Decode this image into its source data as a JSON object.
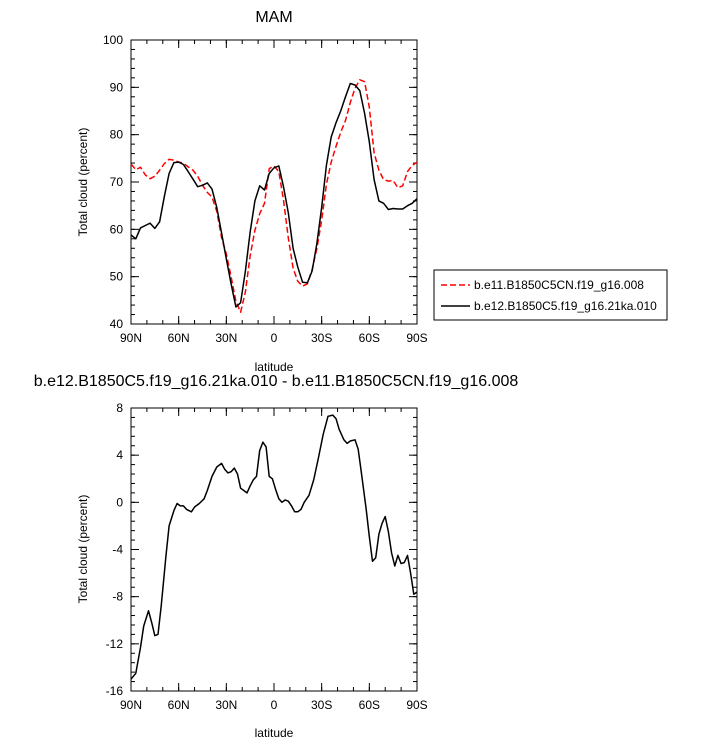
{
  "chart_data": [
    {
      "type": "line",
      "title": "MAM",
      "xlabel": "latitude",
      "ylabel": "Total cloud (percent)",
      "xlim": [
        90,
        -90
      ],
      "ylim": [
        40,
        100
      ],
      "xticks": [
        90,
        60,
        30,
        0,
        -30,
        -60,
        -90
      ],
      "xtick_labels": [
        "90N",
        "60N",
        "30N",
        "0",
        "30S",
        "60S",
        "90S"
      ],
      "yticks": [
        40,
        50,
        60,
        70,
        80,
        90,
        100
      ],
      "ytick_labels": [
        "40",
        "50",
        "60",
        "70",
        "80",
        "90",
        "100"
      ],
      "legend_position": "right",
      "series": [
        {
          "name": "b.e11.B1850C5CN.f19_g16.008",
          "color": "#ff0000",
          "dash": "dashed",
          "x": [
            90,
            87,
            84,
            81,
            78,
            75,
            72,
            69,
            66,
            63,
            60,
            57,
            54,
            51,
            48,
            45,
            42,
            39,
            36,
            33,
            30,
            27,
            24,
            21,
            18,
            15,
            12,
            9,
            6,
            3,
            0,
            -3,
            -6,
            -9,
            -12,
            -15,
            -18,
            -21,
            -24,
            -27,
            -30,
            -33,
            -36,
            -39,
            -42,
            -45,
            -48,
            -51,
            -54,
            -57,
            -60,
            -63,
            -66,
            -69,
            -72,
            -75,
            -78,
            -81,
            -84,
            -87,
            -90
          ],
          "y": [
            73.8,
            72.6,
            73.1,
            71.5,
            70.7,
            71.2,
            72.5,
            73.9,
            74.8,
            74.6,
            74.2,
            74.0,
            73.2,
            72.5,
            71.2,
            69.3,
            67.8,
            66.8,
            63.8,
            58.2,
            54.8,
            50.0,
            44.8,
            42.5,
            46.8,
            54.5,
            59.8,
            63.3,
            65.5,
            72.8,
            73.4,
            72.2,
            66.2,
            58.2,
            51.8,
            49.0,
            48.0,
            48.5,
            51.5,
            56.0,
            62.0,
            69.5,
            74.2,
            77.5,
            80.5,
            83.0,
            86.8,
            89.8,
            91.6,
            91.2,
            85.8,
            76.2,
            72.5,
            70.5,
            70.2,
            70.3,
            68.8,
            69.2,
            72.2,
            73.5,
            74.2
          ]
        },
        {
          "name": "b.e12.B1850C5.f19_g16.21ka.010",
          "color": "#000000",
          "dash": "solid",
          "x": [
            90,
            87,
            84,
            81,
            78,
            75,
            72,
            69,
            66,
            63,
            60,
            57,
            54,
            51,
            48,
            45,
            42,
            39,
            36,
            33,
            30,
            27,
            24,
            21,
            18,
            15,
            12,
            9,
            6,
            3,
            0,
            -3,
            -6,
            -9,
            -12,
            -15,
            -18,
            -21,
            -24,
            -27,
            -30,
            -33,
            -36,
            -39,
            -42,
            -45,
            -48,
            -51,
            -54,
            -57,
            -60,
            -63,
            -66,
            -69,
            -72,
            -75,
            -78,
            -81,
            -84,
            -87,
            -90
          ],
          "y": [
            58.8,
            58.0,
            60.3,
            60.8,
            61.3,
            60.2,
            61.6,
            67.0,
            71.8,
            74.1,
            74.2,
            73.7,
            72.2,
            70.6,
            69.0,
            69.3,
            69.8,
            68.5,
            64.6,
            59.2,
            53.8,
            48.5,
            43.6,
            44.5,
            51.2,
            59.5,
            66.0,
            69.2,
            68.3,
            71.8,
            73.0,
            73.4,
            69.0,
            63.5,
            56.0,
            52.0,
            48.8,
            48.7,
            51.2,
            57.0,
            64.7,
            73.5,
            79.5,
            82.5,
            85.0,
            88.0,
            90.8,
            90.5,
            89.3,
            84.5,
            78.5,
            70.5,
            66.0,
            65.5,
            64.2,
            64.4,
            64.3,
            64.3,
            65.0,
            65.5,
            66.5
          ]
        }
      ]
    },
    {
      "type": "line",
      "title": "b.e12.B1850C5.f19_g16.21ka.010 - b.e11.B1850C5CN.f19_g16.008",
      "xlabel": "latitude",
      "ylabel": "Total cloud (percent)",
      "xlim": [
        90,
        -90
      ],
      "ylim": [
        -16,
        8
      ],
      "xticks": [
        90,
        60,
        30,
        0,
        -30,
        -60,
        -90
      ],
      "xtick_labels": [
        "90N",
        "60N",
        "30N",
        "0",
        "30S",
        "60S",
        "90S"
      ],
      "yticks": [
        -16,
        -12,
        -8,
        -4,
        0,
        4,
        8
      ],
      "ytick_labels": [
        "-16",
        "-12",
        "-8",
        "-4",
        "0",
        "4",
        "8"
      ],
      "series": [
        {
          "color": "#000000",
          "dash": "solid",
          "x": [
            90,
            87,
            84,
            82,
            79,
            77,
            75,
            73,
            71,
            68,
            66,
            63,
            61,
            59,
            57,
            55,
            52,
            50,
            47,
            44,
            42,
            39,
            36,
            33,
            31,
            29,
            27,
            25,
            23,
            21,
            19,
            17,
            15,
            13,
            11,
            9,
            7,
            5,
            3,
            1,
            -1,
            -3,
            -5,
            -7,
            -9,
            -11,
            -13,
            -15,
            -17,
            -19,
            -22,
            -25,
            -28,
            -31,
            -34,
            -37,
            -39,
            -41,
            -44,
            -46,
            -48,
            -51,
            -53,
            -55,
            -58,
            -60,
            -62,
            -64,
            -66,
            -68,
            -70,
            -72,
            -74,
            -76,
            -78,
            -80,
            -82,
            -84,
            -86,
            -88,
            -90
          ],
          "y": [
            -15.0,
            -14.5,
            -12.3,
            -10.5,
            -9.2,
            -10.2,
            -11.3,
            -11.2,
            -8.8,
            -4.5,
            -2.0,
            -0.7,
            -0.1,
            -0.3,
            -0.3,
            -0.6,
            -0.8,
            -0.4,
            -0.1,
            0.3,
            1.0,
            2.2,
            3.0,
            3.3,
            2.8,
            2.5,
            2.6,
            2.9,
            2.4,
            1.2,
            1.0,
            0.8,
            1.4,
            1.9,
            2.2,
            4.4,
            5.1,
            4.7,
            2.2,
            2.0,
            1.1,
            0.3,
            0.0,
            0.2,
            0.1,
            -0.3,
            -0.8,
            -0.8,
            -0.6,
            0.0,
            0.6,
            1.9,
            3.8,
            5.8,
            7.3,
            7.4,
            7.1,
            6.2,
            5.3,
            5.0,
            5.2,
            5.3,
            4.5,
            2.5,
            -0.6,
            -2.9,
            -5.0,
            -4.7,
            -2.7,
            -1.8,
            -1.2,
            -2.5,
            -4.3,
            -5.4,
            -4.5,
            -5.2,
            -5.1,
            -4.5,
            -6.0,
            -7.8,
            -7.6
          ]
        }
      ]
    }
  ]
}
